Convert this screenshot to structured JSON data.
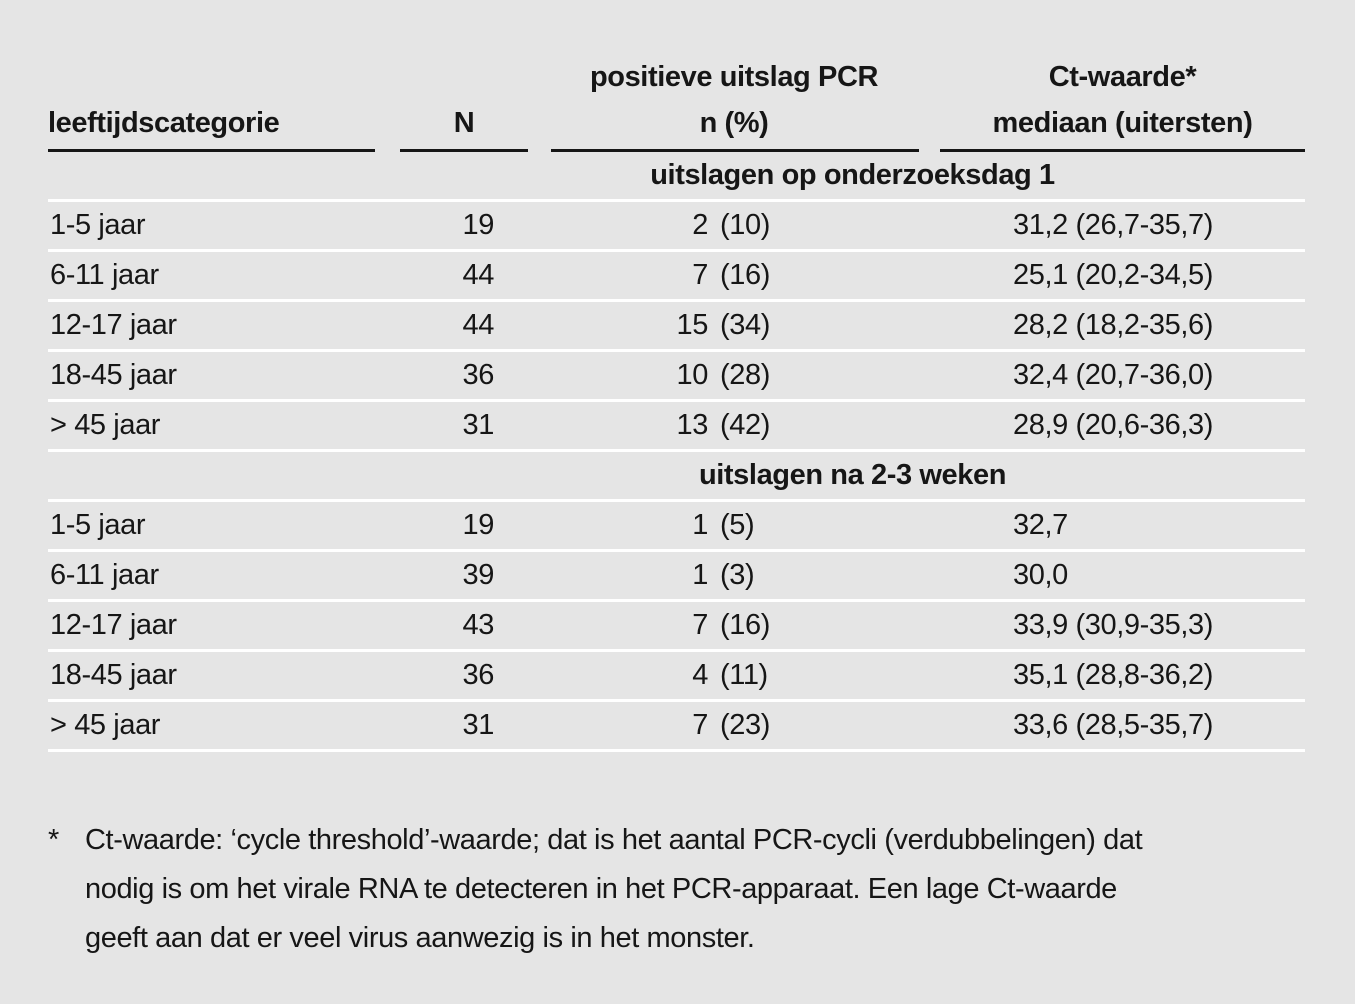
{
  "colors": {
    "background": "#e5e5e5",
    "text": "#161616",
    "row_separator": "#ffffff",
    "header_rule": "#161616"
  },
  "table": {
    "group_headers": {
      "pcr": "positieve uitslag PCR",
      "ct": "Ct-waarde*"
    },
    "column_headers": {
      "category": "leeftijdscategorie",
      "n": "N",
      "pcr": "n (%)",
      "ct": "mediaan (uitersten)"
    },
    "sections": [
      {
        "title": "uitslagen op onderzoeksdag 1",
        "rows": [
          {
            "category": "1-5 jaar",
            "n": "19",
            "pcr_n": "2",
            "pcr_pct": "(10)",
            "ct": "31,2 (26,7-35,7)"
          },
          {
            "category": "6-11 jaar",
            "n": "44",
            "pcr_n": "7",
            "pcr_pct": "(16)",
            "ct": "25,1 (20,2-34,5)"
          },
          {
            "category": "12-17 jaar",
            "n": "44",
            "pcr_n": "15",
            "pcr_pct": "(34)",
            "ct": "28,2 (18,2-35,6)"
          },
          {
            "category": "18-45 jaar",
            "n": "36",
            "pcr_n": "10",
            "pcr_pct": "(28)",
            "ct": "32,4 (20,7-36,0)"
          },
          {
            "category": "> 45 jaar",
            "n": "31",
            "pcr_n": "13",
            "pcr_pct": "(42)",
            "ct": "28,9 (20,6-36,3)"
          }
        ]
      },
      {
        "title": "uitslagen na 2-3 weken",
        "rows": [
          {
            "category": "1-5 jaar",
            "n": "19",
            "pcr_n": "1",
            "pcr_pct": "(5)",
            "ct": "32,7"
          },
          {
            "category": "6-11 jaar",
            "n": "39",
            "pcr_n": "1",
            "pcr_pct": "(3)",
            "ct": "30,0"
          },
          {
            "category": "12-17 jaar",
            "n": "43",
            "pcr_n": "7",
            "pcr_pct": "(16)",
            "ct": "33,9 (30,9-35,3)"
          },
          {
            "category": "18-45 jaar",
            "n": "36",
            "pcr_n": "4",
            "pcr_pct": "(11)",
            "ct": "35,1 (28,8-36,2)"
          },
          {
            "category": "> 45 jaar",
            "n": "31",
            "pcr_n": "7",
            "pcr_pct": "(23)",
            "ct": "33,6 (28,5-35,7)"
          }
        ]
      }
    ]
  },
  "footnote": {
    "marker": "*",
    "lines": [
      "Ct-waarde: ‘cycle threshold’-waarde; dat is het aantal PCR-cycli (verdubbelingen) dat",
      "nodig is om het virale RNA te detecteren in het PCR-apparaat. Een lage Ct-waarde",
      "geeft aan dat er veel virus aanwezig is in het monster."
    ]
  },
  "chart_data": {
    "type": "table",
    "columns": [
      "leeftijdscategorie",
      "N",
      "positieve uitslag PCR n (%)",
      "Ct-waarde* mediaan (uitersten)"
    ],
    "sections": [
      {
        "title": "uitslagen op onderzoeksdag 1",
        "rows": [
          [
            "1-5 jaar",
            "19",
            "2 (10)",
            "31,2 (26,7-35,7)"
          ],
          [
            "6-11 jaar",
            "44",
            "7 (16)",
            "25,1 (20,2-34,5)"
          ],
          [
            "12-17 jaar",
            "44",
            "15 (34)",
            "28,2 (18,2-35,6)"
          ],
          [
            "18-45 jaar",
            "36",
            "10 (28)",
            "32,4 (20,7-36,0)"
          ],
          [
            "> 45 jaar",
            "31",
            "13 (42)",
            "28,9 (20,6-36,3)"
          ]
        ]
      },
      {
        "title": "uitslagen na 2-3 weken",
        "rows": [
          [
            "1-5 jaar",
            "19",
            "1 (5)",
            "32,7"
          ],
          [
            "6-11 jaar",
            "39",
            "1 (3)",
            "30,0"
          ],
          [
            "12-17 jaar",
            "43",
            "7 (16)",
            "33,9 (30,9-35,3)"
          ],
          [
            "18-45 jaar",
            "36",
            "4 (11)",
            "35,1 (28,8-36,2)"
          ],
          [
            "> 45 jaar",
            "31",
            "7 (23)",
            "33,6 (28,5-35,7)"
          ]
        ]
      }
    ]
  }
}
